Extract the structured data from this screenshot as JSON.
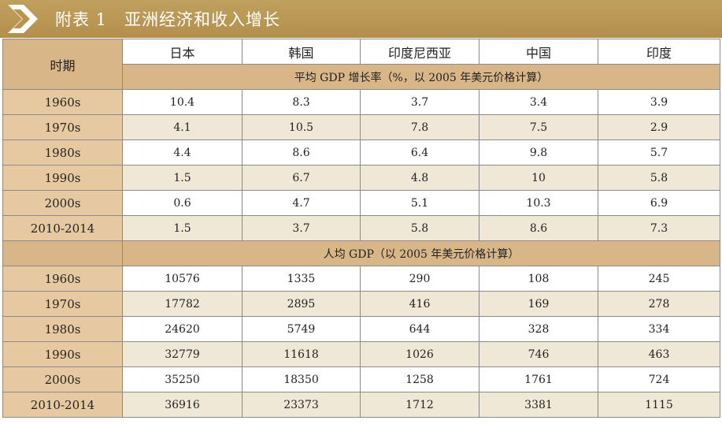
{
  "title": {
    "prefix": "附表 1",
    "text": "亚洲经济和收入增长"
  },
  "columns": {
    "period": "时期",
    "countries": [
      "日本",
      "韩国",
      "印度尼西亚",
      "中国",
      "印度"
    ]
  },
  "sections": [
    {
      "label": "平均 GDP 增长率（%，以 2005 年美元价格计算）",
      "rows": [
        {
          "period": "1960s",
          "values": [
            "10.4",
            "8.3",
            "3.7",
            "3.4",
            "3.9"
          ]
        },
        {
          "period": "1970s",
          "values": [
            "4.1",
            "10.5",
            "7.8",
            "7.5",
            "2.9"
          ]
        },
        {
          "period": "1980s",
          "values": [
            "4.4",
            "8.6",
            "6.4",
            "9.8",
            "5.7"
          ]
        },
        {
          "period": "1990s",
          "values": [
            "1.5",
            "6.7",
            "4.8",
            "10",
            "5.8"
          ]
        },
        {
          "period": "2000s",
          "values": [
            "0.6",
            "4.7",
            "5.1",
            "10.3",
            "6.9"
          ]
        },
        {
          "period": "2010-2014",
          "values": [
            "1.5",
            "3.7",
            "5.8",
            "8.6",
            "7.3"
          ]
        }
      ]
    },
    {
      "label": "人均 GDP（以 2005 年美元价格计算）",
      "rows": [
        {
          "period": "1960s",
          "values": [
            "10576",
            "1335",
            "290",
            "108",
            "245"
          ]
        },
        {
          "period": "1970s",
          "values": [
            "17782",
            "2895",
            "416",
            "169",
            "278"
          ]
        },
        {
          "period": "1980s",
          "values": [
            "24620",
            "5749",
            "644",
            "328",
            "334"
          ]
        },
        {
          "period": "1990s",
          "values": [
            "32779",
            "11618",
            "1026",
            "746",
            "463"
          ]
        },
        {
          "period": "2000s",
          "values": [
            "35250",
            "18350",
            "1258",
            "1761",
            "724"
          ]
        },
        {
          "period": "2010-2014",
          "values": [
            "36916",
            "23373",
            "1712",
            "3381",
            "1115"
          ]
        }
      ]
    }
  ],
  "colors": {
    "header_gold": "#b8954f",
    "period_tan": "#e6c9a0",
    "stripe": "#efe8d6"
  },
  "icons": {
    "title": "chevron-right-icon"
  }
}
